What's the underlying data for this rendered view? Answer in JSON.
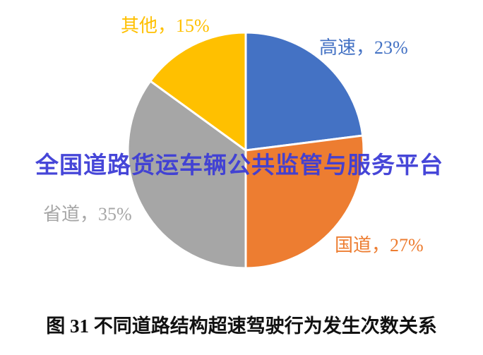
{
  "page": {
    "background": "#ffffff"
  },
  "chart_data": {
    "type": "pie",
    "title": "图 31 不同道路结构超速驾驶行为发生次数关系",
    "categories": [
      "高速",
      "国道",
      "省道",
      "其他"
    ],
    "values": [
      23,
      27,
      35,
      15
    ],
    "unit": "%",
    "start_angle_deg": 0,
    "direction": "clockwise",
    "legend": "none",
    "label_position": "outside, colored to match slice",
    "slice_border_color": "#ffffff",
    "slices": [
      {
        "id": "gaosu",
        "name": "高速",
        "value": 23,
        "label": "高速，23%",
        "color": "#4472C4"
      },
      {
        "id": "guodao",
        "name": "国道",
        "value": 27,
        "label": "国道，27%",
        "color": "#ED7D31"
      },
      {
        "id": "shengdao",
        "name": "省道",
        "value": 35,
        "label": "省道，35%",
        "color": "#A6A6A6"
      },
      {
        "id": "qita",
        "name": "其他",
        "value": 15,
        "label": "其他，15%",
        "color": "#FFC000"
      }
    ]
  },
  "watermark": {
    "text": "全国道路货运车辆公共监管与服务平台",
    "color": "#3D3DD6"
  },
  "caption": {
    "text": "图 31 不同道路结构超速驾驶行为发生次数关系"
  }
}
